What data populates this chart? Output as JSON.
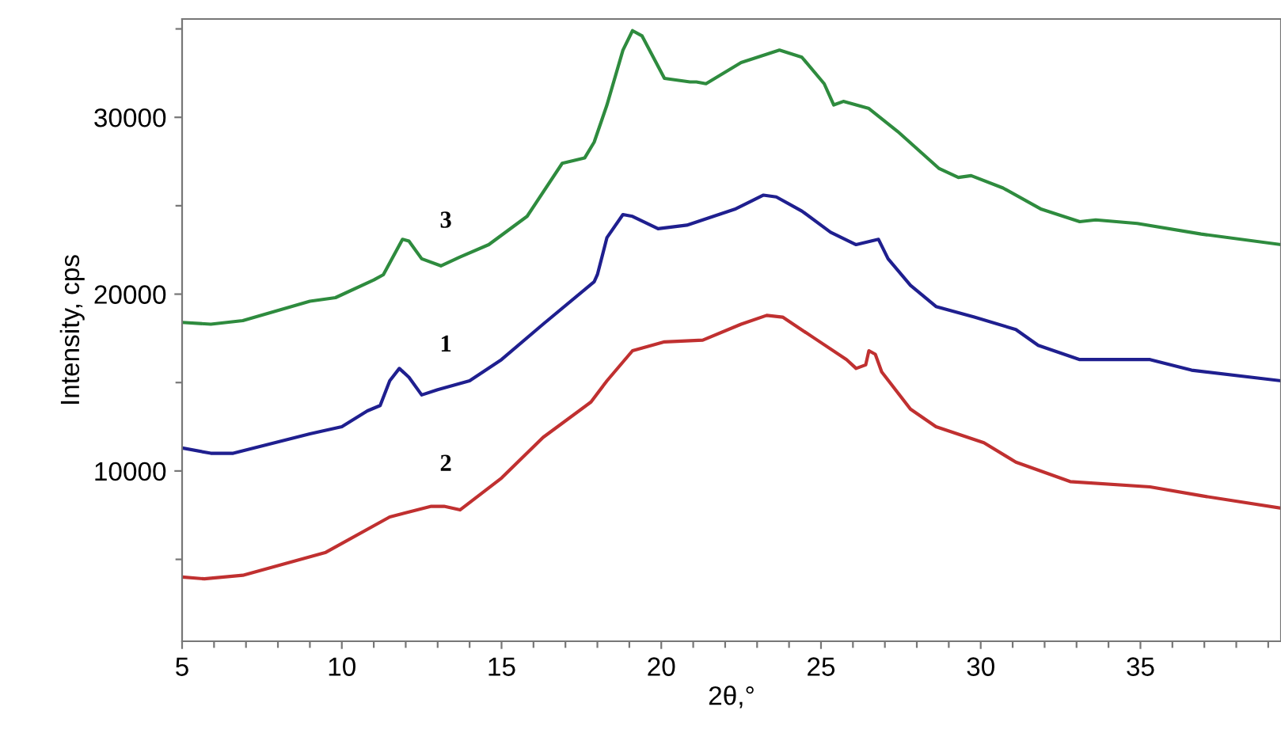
{
  "chart_data": {
    "type": "line",
    "xlabel": "2θ,°",
    "ylabel": "Intensity, cps",
    "xlim": [
      5,
      39.4
    ],
    "ylim": [
      370,
      35560
    ],
    "xticks": [
      5,
      {
        "value": 6,
        "label": null
      },
      {
        "value": 7,
        "label": null
      },
      {
        "value": 8,
        "label": null
      },
      {
        "value": 9,
        "label": null
      },
      10,
      {
        "value": 11,
        "label": null
      },
      {
        "value": 12,
        "label": null
      },
      {
        "value": 13,
        "label": null
      },
      {
        "value": 14,
        "label": null
      },
      15,
      {
        "value": 16,
        "label": null
      },
      {
        "value": 17,
        "label": null
      },
      {
        "value": 18,
        "label": null
      },
      {
        "value": 19,
        "label": null
      },
      20,
      {
        "value": 21,
        "label": null
      },
      {
        "value": 22,
        "label": null
      },
      {
        "value": 23,
        "label": null
      },
      {
        "value": 24,
        "label": null
      },
      25,
      {
        "value": 26,
        "label": null
      },
      {
        "value": 27,
        "label": null
      },
      {
        "value": 28,
        "label": null
      },
      {
        "value": 29,
        "label": null
      },
      30,
      {
        "value": 31,
        "label": null
      },
      {
        "value": 32,
        "label": null
      },
      {
        "value": 33,
        "label": null
      },
      {
        "value": 34,
        "label": null
      },
      35,
      {
        "value": 36,
        "label": null
      },
      {
        "value": 37,
        "label": null
      },
      {
        "value": 38,
        "label": null
      },
      {
        "value": 39,
        "label": null
      }
    ],
    "yticks": [
      {
        "value": 5000,
        "label": null
      },
      10000,
      {
        "value": 15000,
        "label": null
      },
      20000,
      {
        "value": 25000,
        "label": null
      },
      30000,
      {
        "value": 35000,
        "label": null
      }
    ],
    "grid": false,
    "legend": false,
    "marker": "none",
    "line_style": "solid",
    "series": [
      {
        "color": "#2e8b3e",
        "x": [
          5,
          5.9,
          6.9,
          9.0,
          9.8,
          11.0,
          11.3,
          11.9,
          12.1,
          12.5,
          13.1,
          13.7,
          14.6,
          15.8,
          16.9,
          17.6,
          17.9,
          18.3,
          18.8,
          19.1,
          19.4,
          20.1,
          20.9,
          21.1,
          21.4,
          22.5,
          23.7,
          24.4,
          25.1,
          25.4,
          25.7,
          26.5,
          27.4,
          28.7,
          29.3,
          29.7,
          30.7,
          31.9,
          33.1,
          33.6,
          34.9,
          36.9,
          39.4
        ],
        "values": [
          18400,
          18300,
          18500,
          19600,
          19800,
          20800,
          21100,
          23100,
          23000,
          22000,
          21600,
          22100,
          22800,
          24400,
          27400,
          27700,
          28600,
          30700,
          33800,
          34900,
          34600,
          32200,
          32000,
          32000,
          31900,
          33100,
          33800,
          33400,
          31900,
          30700,
          30900,
          30500,
          29200,
          27100,
          26600,
          26700,
          26000,
          24800,
          24100,
          24200,
          24000,
          23400,
          22800
        ],
        "name": "3"
      },
      {
        "color": "#1f1f8f",
        "x": [
          5,
          5.9,
          6.6,
          9.0,
          10.0,
          10.8,
          11.2,
          11.5,
          11.8,
          12.1,
          12.5,
          13.0,
          14.0,
          15.0,
          16.3,
          17.9,
          18.0,
          18.3,
          18.8,
          19.1,
          19.9,
          20.8,
          22.3,
          23.2,
          23.6,
          24.4,
          25.3,
          26.1,
          26.8,
          27.1,
          27.8,
          28.6,
          29.8,
          31.1,
          31.8,
          33.1,
          35.3,
          36.6,
          39.4
        ],
        "values": [
          11300,
          11000,
          11000,
          12100,
          12500,
          13400,
          13700,
          15100,
          15800,
          15300,
          14300,
          14600,
          15100,
          16300,
          18300,
          20700,
          21100,
          23200,
          24500,
          24400,
          23700,
          23900,
          24800,
          25600,
          25500,
          24700,
          23500,
          22800,
          23100,
          22000,
          20500,
          19300,
          18700,
          18000,
          17100,
          16300,
          16300,
          15700,
          15100
        ],
        "name": "1"
      },
      {
        "color": "#c03030",
        "x": [
          5,
          5.7,
          6.9,
          9.5,
          11.5,
          12.8,
          13.2,
          13.7,
          15.0,
          16.3,
          17.8,
          18.3,
          19.1,
          20.1,
          21.3,
          22.5,
          23.3,
          23.8,
          24.8,
          25.8,
          26.1,
          26.4,
          26.5,
          26.7,
          26.9,
          27.8,
          28.6,
          30.1,
          31.1,
          32.8,
          35.3,
          36.9,
          39.4
        ],
        "values": [
          4000,
          3900,
          4100,
          5400,
          7400,
          8000,
          8000,
          7800,
          9600,
          11900,
          13900,
          15100,
          16800,
          17300,
          17400,
          18300,
          18800,
          18700,
          17500,
          16300,
          15800,
          16000,
          16800,
          16600,
          15600,
          13500,
          12500,
          11600,
          10500,
          9400,
          9100,
          8600,
          7900
        ],
        "name": "2"
      }
    ]
  }
}
